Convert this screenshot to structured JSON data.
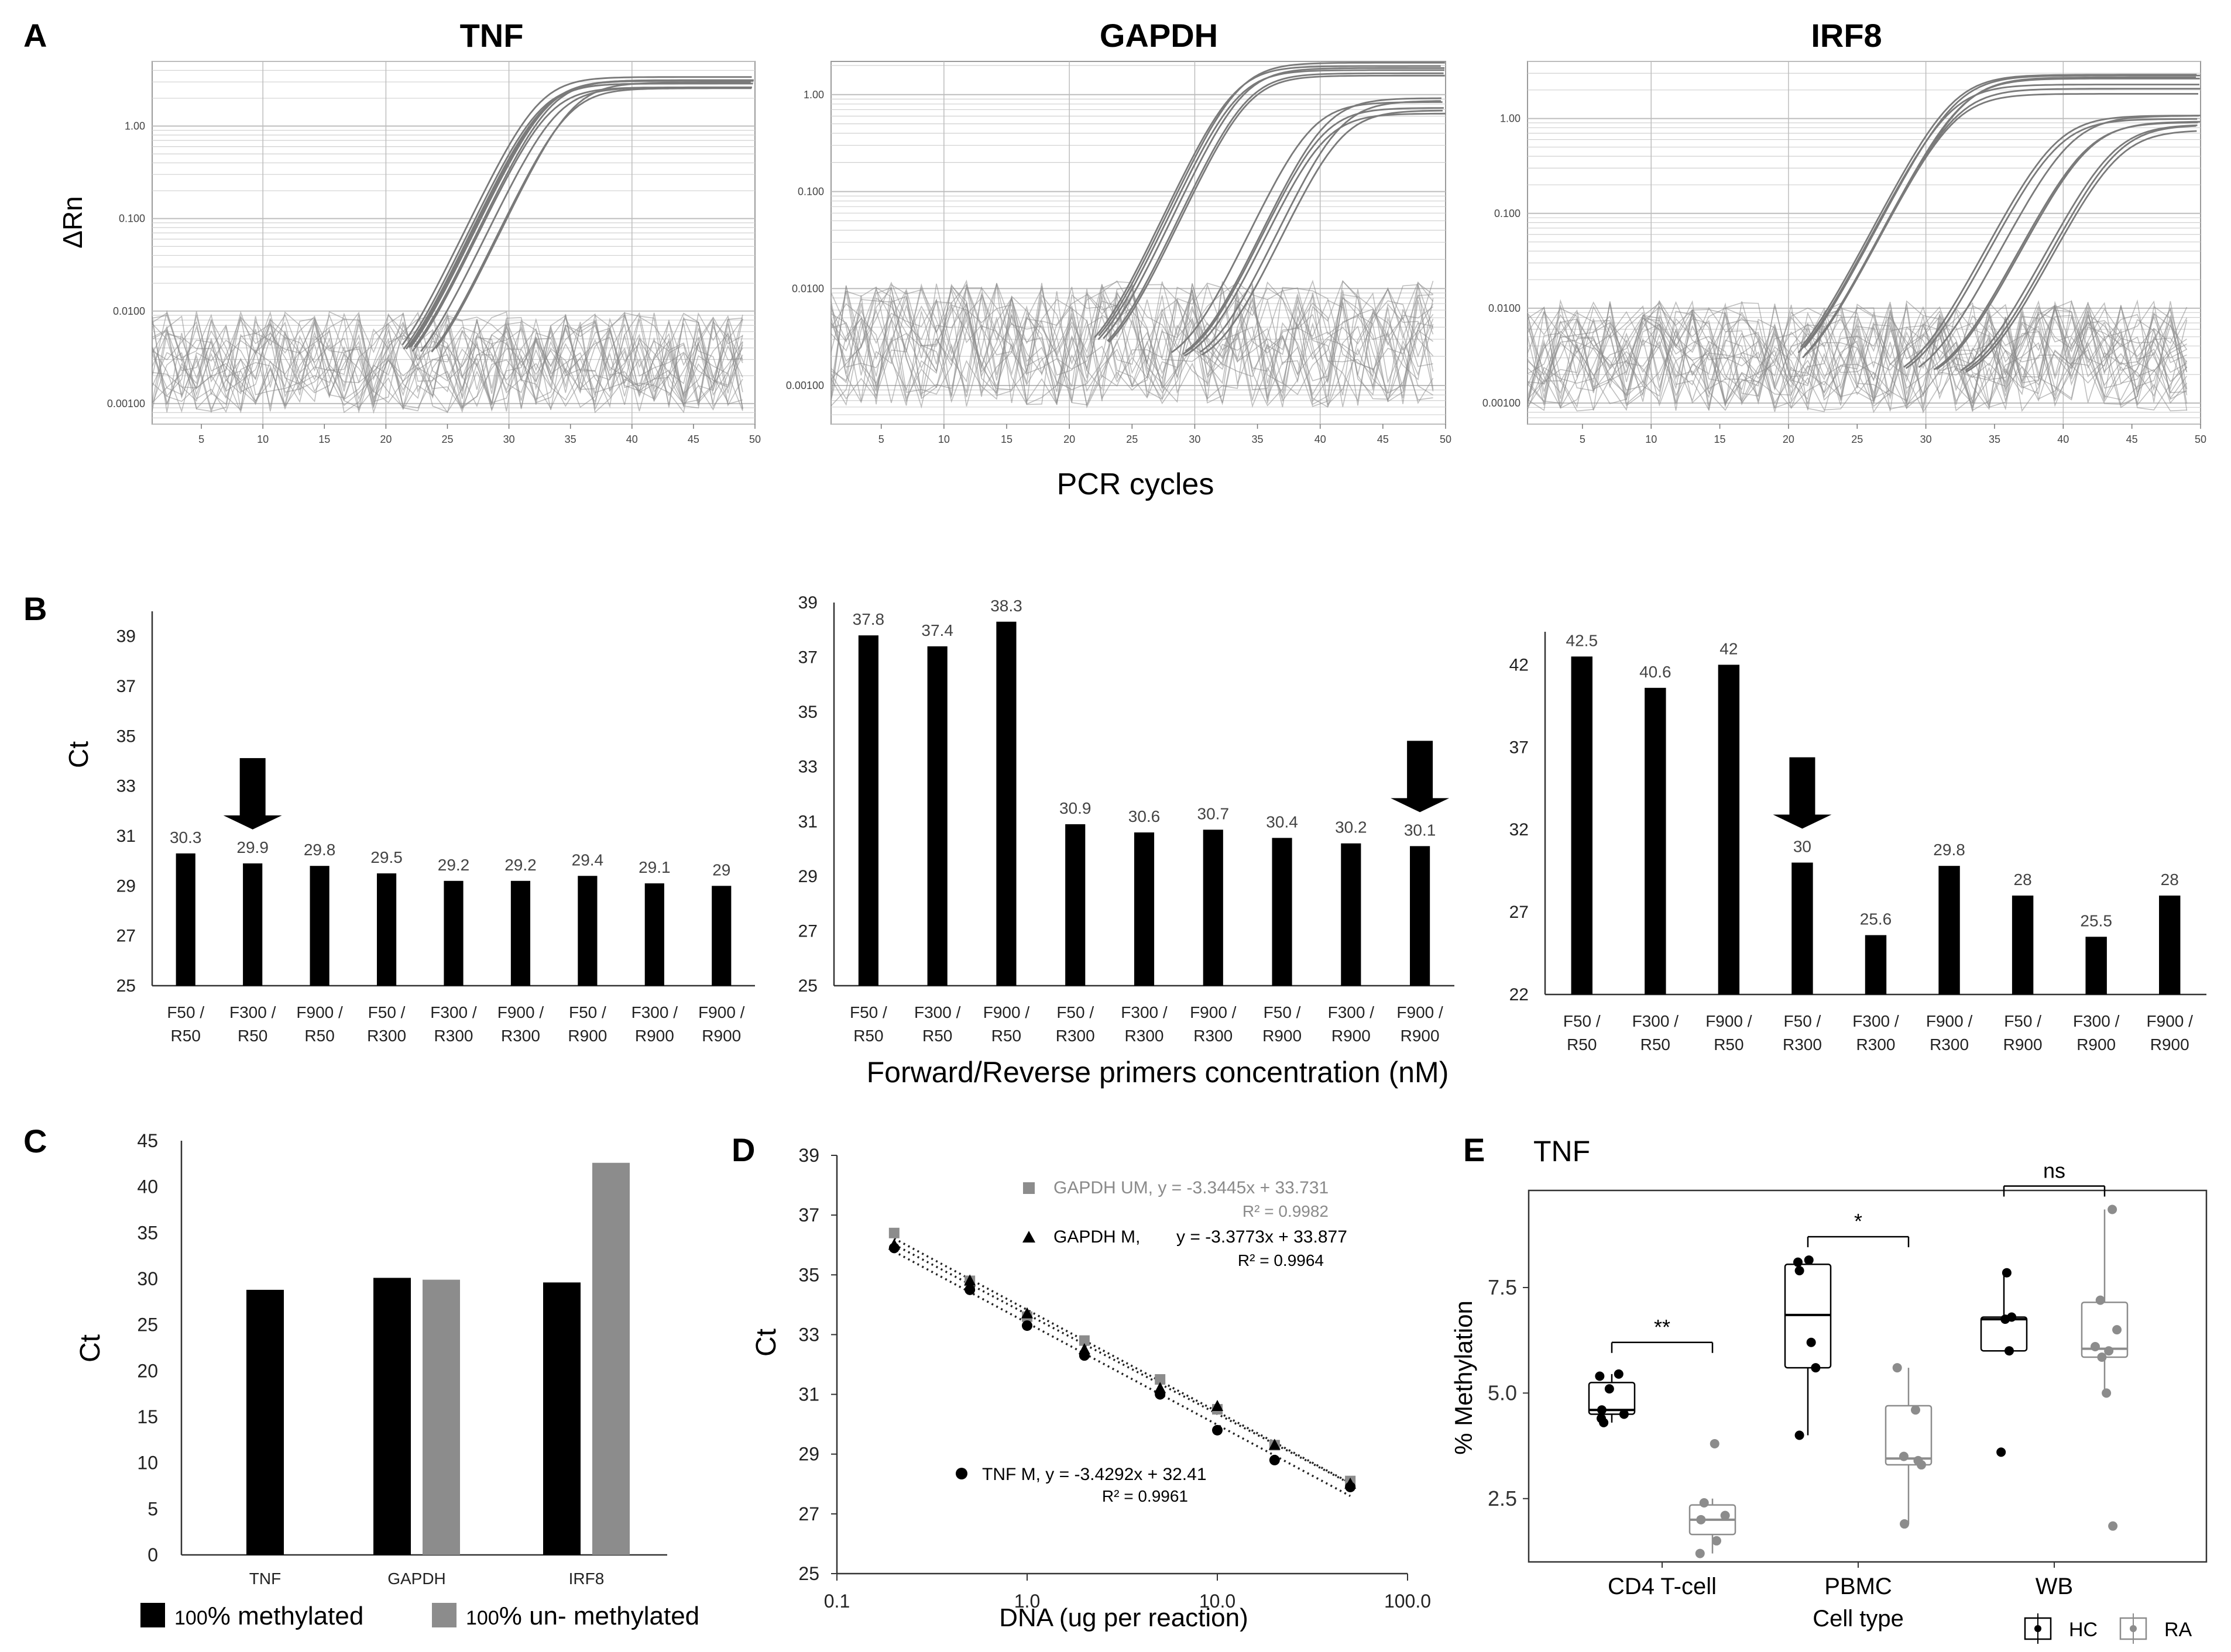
{
  "figure": {
    "panel_letters": {
      "A": "A",
      "B": "B",
      "C": "C",
      "D": "D",
      "E": "E"
    },
    "palette": {
      "black": "#000000",
      "gray": "#8c8c8c",
      "curve": "#7a7a7a",
      "grid": "#d0d0d0",
      "axis": "#555555"
    }
  },
  "chart_data": [
    {
      "id": "A",
      "type": "line",
      "title_shared": {
        "ylabel": "ΔRn",
        "xlabel": "PCR cycles"
      },
      "x_ticks": [
        5,
        10,
        15,
        20,
        25,
        30,
        35,
        40,
        45,
        50
      ],
      "xlim": [
        1,
        50
      ],
      "yscale": "log",
      "panels": [
        {
          "title": "TNF",
          "ylim": [
            0.0006,
            5.0
          ],
          "y_ticks": [
            "1.00",
            "0.100",
            "0.0100",
            "0.00100"
          ],
          "y_tick_values": [
            1,
            0.1,
            0.01,
            0.001
          ],
          "groups": [
            {
              "count": 10,
              "ct_center": 31.5,
              "ct_spread": 1.6,
              "plateau": 3.0
            }
          ],
          "noise_curves": 22,
          "noise_band": [
            0.0008,
            0.01
          ]
        },
        {
          "title": "GAPDH",
          "ylim": [
            0.0004,
            2.2
          ],
          "y_ticks": [
            "1.00",
            "0.100",
            "0.0100",
            "0.00100"
          ],
          "y_tick_values": [
            1,
            0.1,
            0.01,
            0.001
          ],
          "groups": [
            {
              "count": 6,
              "ct_center": 32,
              "ct_spread": 1.2,
              "plateau": 1.9
            },
            {
              "count": 6,
              "ct_center": 38.5,
              "ct_spread": 1.6,
              "plateau": 0.9
            }
          ],
          "noise_curves": 22,
          "noise_band": [
            0.0006,
            0.012
          ]
        },
        {
          "title": "IRF8",
          "ylim": [
            0.0006,
            4.0
          ],
          "y_ticks": [
            "1.00",
            "0.100",
            "0.0100",
            "0.00100"
          ],
          "y_tick_values": [
            1,
            0.1,
            0.01,
            0.001
          ],
          "groups": [
            {
              "count": 7,
              "ct_center": 31.5,
              "ct_spread": 2.0,
              "plateau": 2.6
            },
            {
              "count": 8,
              "ct_center": 39.5,
              "ct_spread": 2.8,
              "plateau": 1.0
            }
          ],
          "noise_curves": 26,
          "noise_band": [
            0.0008,
            0.012
          ]
        }
      ]
    },
    {
      "id": "B",
      "type": "bar",
      "ylabel": "Ct",
      "xlabel": "Forward/Reverse primers concentration (nM)",
      "categories": [
        [
          "F50 /",
          "R50"
        ],
        [
          "F300 /",
          "R50"
        ],
        [
          "F900 /",
          "R50"
        ],
        [
          "F50 /",
          "R300"
        ],
        [
          "F300 /",
          "R300"
        ],
        [
          "F900 /",
          "R300"
        ],
        [
          "F50 /",
          "R900"
        ],
        [
          "F300 /",
          "R900"
        ],
        [
          "F900 /",
          "R900"
        ]
      ],
      "panels": [
        {
          "gene": "TNF",
          "ylim": [
            25,
            40
          ],
          "y_ticks": [
            25,
            27,
            29,
            31,
            33,
            35,
            37,
            39
          ],
          "values": [
            30.3,
            29.9,
            29.8,
            29.5,
            29.2,
            29.2,
            29.4,
            29.1,
            29
          ],
          "labels": [
            "30.3",
            "29.9",
            "29.8",
            "29.5",
            "29.2",
            "29.2",
            "29.4",
            "29.1",
            "29"
          ],
          "arrow_index": 1
        },
        {
          "gene": "GAPDH",
          "ylim": [
            25,
            39
          ],
          "y_ticks": [
            25,
            27,
            29,
            31,
            33,
            35,
            37,
            39
          ],
          "values": [
            37.8,
            37.4,
            38.3,
            30.9,
            30.6,
            30.7,
            30.4,
            30.2,
            30.1
          ],
          "labels": [
            "37.8",
            "37.4",
            "38.3",
            "30.9",
            "30.6",
            "30.7",
            "30.4",
            "30.2",
            "30.1"
          ],
          "arrow_index": 8
        },
        {
          "gene": "IRF8",
          "ylim": [
            22,
            44
          ],
          "y_ticks": [
            22,
            27,
            32,
            37,
            42
          ],
          "values": [
            42.5,
            40.6,
            42,
            30,
            25.6,
            29.8,
            28,
            25.5,
            28
          ],
          "labels": [
            "42.5",
            "40.6",
            "42",
            "30",
            "25.6",
            "29.8",
            "28",
            "25.5",
            "28"
          ],
          "arrow_index": 3
        }
      ]
    },
    {
      "id": "C",
      "type": "bar",
      "ylabel": "Ct",
      "ylim": [
        0,
        45
      ],
      "y_ticks": [
        0,
        5,
        10,
        15,
        20,
        25,
        30,
        35,
        40,
        45
      ],
      "categories": [
        "TNF",
        "GAPDH",
        "IRF8"
      ],
      "series": [
        {
          "name": "100% methylated",
          "color": "#000000",
          "values": [
            28.8,
            30.1,
            29.6
          ]
        },
        {
          "name": "100% un- methylated",
          "color": "#8c8c8c",
          "values": [
            null,
            29.9,
            42.6
          ]
        }
      ],
      "legend": [
        {
          "prefix": "100",
          "suffix": "% methylated"
        },
        {
          "prefix": "100",
          "suffix": "% un- methylated"
        }
      ]
    },
    {
      "id": "D",
      "type": "scatter",
      "xscale": "log",
      "xlabel": "DNA (ug per reaction)",
      "ylabel": "Ct",
      "xlim": [
        0.1,
        100
      ],
      "x_ticks": [
        0.1,
        1,
        10,
        100
      ],
      "x_tick_labels": [
        "0.1",
        "1.0",
        "10.0",
        "100.0"
      ],
      "ylim": [
        25,
        39
      ],
      "y_ticks": [
        25,
        27,
        29,
        31,
        33,
        35,
        37,
        39
      ],
      "x": [
        0.2,
        0.5,
        1,
        2,
        5,
        10,
        20,
        50
      ],
      "series": [
        {
          "name": "GAPDH UM",
          "marker": "square",
          "color": "#8c8c8c",
          "y": [
            36.4,
            34.8,
            33.6,
            32.8,
            31.5,
            30.5,
            29.3,
            28.1
          ],
          "equation": "GAPDH UM, y = -3.3445x + 33.731",
          "r2": "R² = 0.9982"
        },
        {
          "name": "GAPDH M",
          "marker": "triangle",
          "color": "#000000",
          "y": [
            36.0,
            34.8,
            33.7,
            32.5,
            31.2,
            30.6,
            29.3,
            28.0
          ],
          "equation_name": "GAPDH M,",
          "equation": "y = -3.3773x + 33.877",
          "r2": "R² = 0.9964"
        },
        {
          "name": "TNF M",
          "marker": "circle",
          "color": "#000000",
          "y": [
            35.9,
            34.5,
            33.3,
            32.3,
            31.0,
            29.8,
            28.8,
            27.9
          ],
          "equation": "TNF M, y = -3.4292x + 32.41",
          "r2": "R² = 0.9961"
        }
      ]
    },
    {
      "id": "E",
      "type": "box",
      "title": "TNF",
      "xlabel": "Cell type",
      "ylabel": "% Methylation",
      "ylim": [
        1.0,
        9.8
      ],
      "y_ticks": [
        2.5,
        5.0,
        7.5
      ],
      "y_tick_labels": [
        "2.5",
        "5.0",
        "7.5"
      ],
      "categories": [
        "CD4 T-cell",
        "PBMC",
        "WB"
      ],
      "significance": [
        "**",
        "*",
        "ns"
      ],
      "legend": [
        "HC",
        "RA"
      ],
      "groups": [
        {
          "category": "CD4 T-cell",
          "HC": {
            "q1": 4.5,
            "median": 4.6,
            "q3": 5.25,
            "lo": 4.3,
            "hi": 5.45,
            "points": [
              4.3,
              4.4,
              4.5,
              4.6,
              5.1,
              5.4,
              5.45
            ]
          },
          "RA": {
            "q1": 1.65,
            "median": 2.0,
            "q3": 2.35,
            "lo": 1.2,
            "hi": 2.5,
            "points": [
              1.2,
              1.5,
              2.0,
              2.1,
              2.4,
              3.8
            ]
          }
        },
        {
          "category": "PBMC",
          "HC": {
            "q1": 5.6,
            "median": 6.85,
            "q3": 8.05,
            "lo": 4.0,
            "hi": 8.15,
            "points": [
              4.0,
              5.6,
              6.2,
              7.9,
              8.1,
              8.15
            ]
          },
          "RA": {
            "q1": 3.3,
            "median": 3.45,
            "q3": 4.7,
            "lo": 1.9,
            "hi": 5.6,
            "points": [
              1.9,
              3.3,
              3.4,
              3.5,
              4.6,
              5.6
            ]
          }
        },
        {
          "category": "WB",
          "HC": {
            "q1": 6.0,
            "median": 6.75,
            "q3": 6.8,
            "lo": 6.0,
            "hi": 7.85,
            "points": [
              3.6,
              6.0,
              6.75,
              6.8,
              7.85
            ]
          },
          "RA": {
            "q1": 5.85,
            "median": 6.05,
            "q3": 7.15,
            "lo": 5.0,
            "hi": 9.35,
            "points": [
              1.85,
              5.0,
              5.85,
              6.0,
              6.1,
              6.5,
              7.2,
              9.35
            ]
          }
        }
      ]
    }
  ]
}
